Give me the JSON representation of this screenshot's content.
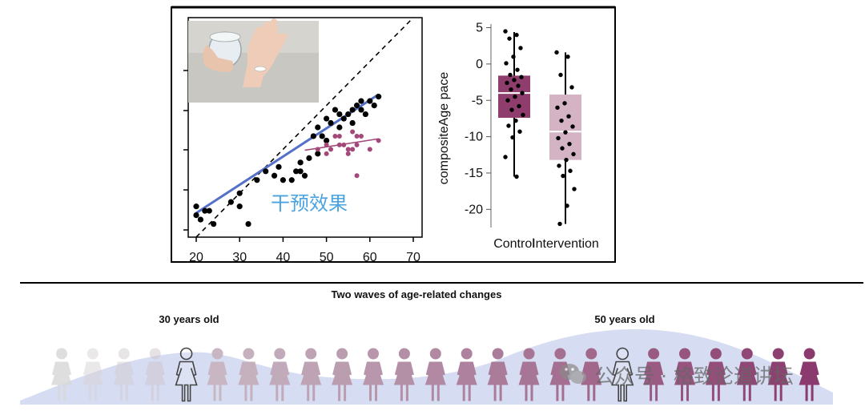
{
  "chart_data": [
    {
      "type": "scatter",
      "name": "intervention-effect-scatter",
      "xlim": [
        20,
        70
      ],
      "xticks": [
        "20",
        "30",
        "40",
        "50",
        "60",
        "70"
      ],
      "ylim": [
        20,
        70
      ],
      "inset_photo": "hand holding a pill beside a glass of water",
      "overlay_label": "干预效果",
      "colors": {
        "black_points": "#000000",
        "purple_points": "#a4487a",
        "blue_line": "#5570c8",
        "purple_line": "#a4487a",
        "identity_line": "#000000"
      },
      "series": [
        {
          "name": "black",
          "points": [
            [
              20,
              27
            ],
            [
              20,
              25
            ],
            [
              21,
              24
            ],
            [
              22,
              26
            ],
            [
              23,
              26
            ],
            [
              24,
              23
            ],
            [
              28,
              28
            ],
            [
              30,
              30
            ],
            [
              30,
              27
            ],
            [
              32,
              23
            ],
            [
              34,
              33
            ],
            [
              36,
              35
            ],
            [
              38,
              34
            ],
            [
              39,
              36
            ],
            [
              40,
              33
            ],
            [
              42,
              33
            ],
            [
              43,
              35
            ],
            [
              44,
              35
            ],
            [
              45,
              34
            ],
            [
              46,
              38
            ],
            [
              48,
              39
            ],
            [
              48,
              45
            ],
            [
              49,
              43
            ],
            [
              50,
              47
            ],
            [
              51,
              46
            ],
            [
              52,
              49
            ],
            [
              53,
              45
            ],
            [
              54,
              47
            ],
            [
              55,
              48
            ],
            [
              56,
              49
            ],
            [
              56,
              46
            ],
            [
              57,
              50
            ],
            [
              58,
              49
            ],
            [
              58,
              51
            ],
            [
              59,
              48
            ],
            [
              60,
              51
            ],
            [
              61,
              50
            ],
            [
              62,
              52
            ],
            [
              44,
              37
            ],
            [
              47,
              43
            ],
            [
              50,
              42
            ],
            [
              53,
              48
            ]
          ]
        },
        {
          "name": "purple",
          "points": [
            [
              48,
              40
            ],
            [
              50,
              41
            ],
            [
              50,
              39
            ],
            [
              51,
              40
            ],
            [
              52,
              43
            ],
            [
              53,
              43
            ],
            [
              53,
              41
            ],
            [
              54,
              41
            ],
            [
              55,
              40
            ],
            [
              55,
              39
            ],
            [
              56,
              44
            ],
            [
              56,
              40
            ],
            [
              57,
              43
            ],
            [
              57,
              41
            ],
            [
              57,
              34
            ],
            [
              58,
              43
            ],
            [
              60,
              40
            ],
            [
              62,
              42
            ]
          ]
        }
      ],
      "fit_lines": [
        {
          "name": "identity",
          "x": [
            20,
            70
          ],
          "y": [
            20,
            70
          ],
          "style": "dashed"
        },
        {
          "name": "blue-fit",
          "x": [
            20,
            62
          ],
          "y": [
            25.5,
            52.5
          ]
        },
        {
          "name": "purple-fit",
          "x": [
            45,
            62
          ],
          "y": [
            39.8,
            42.4
          ]
        }
      ]
    },
    {
      "type": "box",
      "name": "compositeage-boxplot",
      "ylabel": "compositeAge pace",
      "ylim": [
        -22.5,
        5.5
      ],
      "yticks": [
        "5",
        "0",
        "-5",
        "-10",
        "-15",
        "-20"
      ],
      "categories": [
        "Control",
        "Intervention"
      ],
      "boxes": [
        {
          "label": "Control",
          "color": "#8e3d6c",
          "q1": -7.4,
          "median": -4.0,
          "q3": -1.6,
          "whisker_low": -15.5,
          "whisker_high": 4.4,
          "points": [
            4.5,
            4.0,
            3.5,
            2.2,
            1.0,
            0.1,
            -0.8,
            -1.5,
            -1.8,
            -2.2,
            -2.6,
            -3.0,
            -3.5,
            -4.0,
            -4.5,
            -5.0,
            -5.8,
            -6.3,
            -7.0,
            -7.8,
            -8.5,
            -9.3,
            -10.1,
            -12.8,
            -15.5
          ]
        },
        {
          "label": "Intervention",
          "color": "#d3b3c4",
          "q1": -13.2,
          "median": -9.3,
          "q3": -4.2,
          "whisker_low": -22.0,
          "whisker_high": 1.6,
          "points": [
            1.6,
            1.0,
            -1.5,
            -3.2,
            -5.4,
            -6.0,
            -7.2,
            -7.8,
            -8.6,
            -9.4,
            -10.2,
            -11.0,
            -11.6,
            -12.4,
            -13.2,
            -14.0,
            -14.7,
            -15.4,
            -17.2,
            -19.5,
            -22.0
          ]
        }
      ]
    }
  ],
  "waves": {
    "title": "Two waves of age-related changes",
    "label_30": "30 years old",
    "label_50": "50 years old",
    "figure_count": 25,
    "highlighted_indices": [
      4,
      18
    ],
    "color_start": "#d8d8d8",
    "color_end": "#8a3a6c",
    "hill_color": "#cfd6ee"
  },
  "watermark": "公众号 · 格致论道讲坛"
}
